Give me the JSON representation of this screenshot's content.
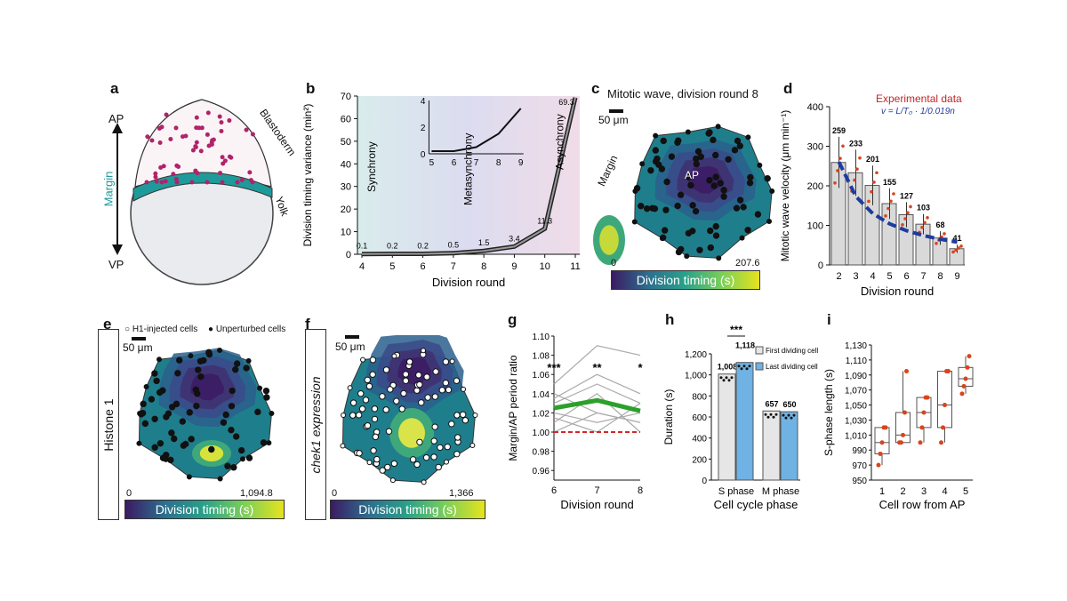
{
  "panels": {
    "a": {
      "label": "a",
      "ap": "AP",
      "vp": "VP",
      "margin": "Margin",
      "blastoderm": "Blastoderm",
      "yolk": "Yolk"
    },
    "b": {
      "label": "b",
      "ylabel": "Division timing variance (min²)",
      "xlabel": "Division round",
      "zones": [
        "Synchrony",
        "Metasynchrony",
        "Asynchrony"
      ]
    },
    "c": {
      "label": "c",
      "title": "Mitotic wave, division round 8",
      "scale": "50 μm",
      "ap": "AP",
      "margin": "Margin",
      "cbar_min": "0",
      "cbar_max": "207.6",
      "cbar_label": "Division timing (s)"
    },
    "d": {
      "label": "d",
      "ylabel": "Mitotic wave velocity (μm min⁻¹)",
      "xlabel": "Division round",
      "legend": "Experimental data",
      "formula": "v = L/T₀ · 1/0.019n"
    },
    "e": {
      "label": "e",
      "side": "Histone 1",
      "legend1": "H1-injected cells",
      "legend2": "Unperturbed cells",
      "scale": "50 μm",
      "cbar_min": "0",
      "cbar_max": "1,094.8",
      "cbar_label": "Division timing (s)"
    },
    "f": {
      "label": "f",
      "side": "chek1 expression",
      "scale": "50 μm",
      "cbar_min": "0",
      "cbar_max": "1,366",
      "cbar_label": "Division timing (s)"
    },
    "g": {
      "label": "g",
      "ylabel": "Margin/AP period ratio",
      "xlabel": "Division round",
      "sig": [
        "***",
        "**",
        "*"
      ]
    },
    "h": {
      "label": "h",
      "ylabel": "Duration (s)",
      "xlabel": "Cell cycle phase",
      "sig": "***",
      "legend1": "First dividing cell",
      "legend2": "Last dividing cell"
    },
    "i": {
      "label": "i",
      "ylabel": "S-phase length (s)",
      "xlabel": "Cell row from AP"
    }
  },
  "chart_data": [
    {
      "panel": "b",
      "type": "line",
      "x": [
        4,
        5,
        6,
        7,
        8,
        9,
        10,
        11
      ],
      "values": [
        0.1,
        0.2,
        0.2,
        0.5,
        1.5,
        3.4,
        11.3,
        69.3
      ],
      "data_labels": [
        "0.1",
        "0.2",
        "0.2",
        "0.5",
        "1.5",
        "3.4",
        "11.3",
        "69.3"
      ],
      "ylim": [
        0,
        70
      ],
      "yticks": [
        0,
        10,
        20,
        30,
        40,
        50,
        60,
        70
      ],
      "inset": {
        "x": [
          5,
          6,
          7,
          8,
          9
        ],
        "values": [
          0.2,
          0.2,
          0.5,
          1.5,
          3.4
        ],
        "ylim": [
          0,
          4
        ],
        "yticks": [
          0,
          2,
          4
        ]
      }
    },
    {
      "panel": "d",
      "type": "bar",
      "categories": [
        "2",
        "3",
        "4",
        "5",
        "6",
        "7",
        "8",
        "9"
      ],
      "values": [
        259,
        233,
        201,
        155,
        127,
        103,
        68,
        41
      ],
      "data_labels": [
        "259",
        "233",
        "201",
        "155",
        "127",
        "103",
        "68",
        "41"
      ],
      "ylim": [
        0,
        400
      ],
      "yticks": [
        0,
        100,
        200,
        300,
        400
      ]
    },
    {
      "panel": "g",
      "type": "line",
      "x": [
        6,
        7,
        8
      ],
      "series": [
        {
          "values": [
            1.025,
            1.033,
            1.022
          ]
        }
      ],
      "background_lines": [
        [
          1.05,
          1.09,
          1.08
        ],
        [
          1.04,
          1.02,
          1.01
        ],
        [
          1.03,
          1.05,
          1.03
        ],
        [
          1.02,
          1.01,
          1.02
        ],
        [
          1.01,
          1.04,
          1.0
        ],
        [
          1.0,
          1.02,
          1.01
        ],
        [
          1.035,
          1.06,
          1.04
        ],
        [
          1.015,
          1.0,
          1.03
        ]
      ],
      "reference": 1.0,
      "ylim": [
        0.95,
        1.1
      ],
      "yticks": [
        "0.96",
        "0.98",
        "1.00",
        "1.02",
        "1.04",
        "1.06",
        "1.08",
        "1.10"
      ]
    },
    {
      "panel": "h",
      "type": "bar",
      "categories": [
        "S phase",
        "M phase"
      ],
      "series": [
        {
          "values": [
            1008,
            657
          ],
          "color": "#e6e6e6"
        },
        {
          "values": [
            1118,
            650
          ],
          "color": "#6fb2e3"
        }
      ],
      "data_labels": [
        "1,008",
        "1,118",
        "657",
        "650"
      ],
      "ylim": [
        0,
        1200
      ],
      "yticks": [
        "0",
        "200",
        "400",
        "600",
        "800",
        "1,000",
        "1,200"
      ]
    },
    {
      "panel": "i",
      "type": "box",
      "categories": [
        "1",
        "2",
        "3",
        "4",
        "5"
      ],
      "boxes": [
        {
          "q1": 985,
          "med": 1000,
          "q3": 1020,
          "lo": 970,
          "hi": 1020
        },
        {
          "q1": 1000,
          "med": 1010,
          "q3": 1040,
          "lo": 1000,
          "hi": 1095
        },
        {
          "q1": 1020,
          "med": 1040,
          "q3": 1060,
          "lo": 1000,
          "hi": 1060
        },
        {
          "q1": 1020,
          "med": 1050,
          "q3": 1095,
          "lo": 1000,
          "hi": 1095
        },
        {
          "q1": 1075,
          "med": 1085,
          "q3": 1100,
          "lo": 1065,
          "hi": 1115
        }
      ],
      "ylim": [
        950,
        1130
      ],
      "yticks": [
        "950",
        "970",
        "990",
        "1,010",
        "1,030",
        "1,050",
        "1,070",
        "1,090",
        "1,110",
        "1,130"
      ]
    }
  ],
  "colors": {
    "viridis_dark": "#3b1b63",
    "viridis_mid": "#2d8d8c",
    "viridis_light": "#e6e31e",
    "accent_green": "#2ca02c",
    "dash_red": "#d62728",
    "dash_blue": "#1f3b9e",
    "bar_blue": "#6fb2e3",
    "dot_red": "#d9441c"
  }
}
